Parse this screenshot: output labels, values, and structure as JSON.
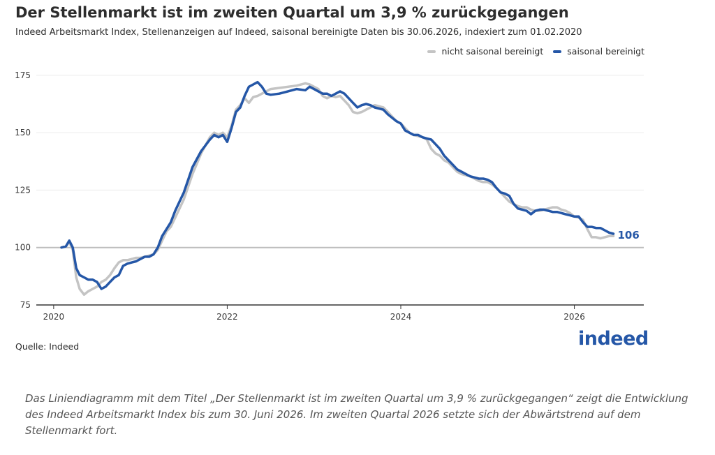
{
  "title": "Der Stellenmarkt ist im zweiten Quartal um 3,9 % zurückgegangen",
  "subtitle": "Indeed Arbeitsmarkt Index, Stellenanzeigen auf Indeed, saisonal bereinigte Daten bis 30.06.2026, indexiert zum 01.02.2020",
  "source": "Quelle: Indeed",
  "logo_text": "indeed",
  "caption": "Das Liniendiagramm mit dem Titel „Der Stellenmarkt ist im zweiten Quartal um 3,9 % zurückgegangen“ zeigt die Entwicklung des Indeed Arbeitsmarkt Index bis zum 30. Juni 2026. Im zweiten Quartal 2026 setzte sich der Abwärtstrend auf dem Stellenmarkt fort.",
  "colors": {
    "sa": "#2557a7",
    "nsa": "#c4c4c4",
    "baseline": "#bdbdbd",
    "grid": "#ececec"
  },
  "chart_data": {
    "type": "line",
    "x_unit": "year",
    "xlim": [
      2019.8,
      2026.8
    ],
    "ylim": [
      75,
      178
    ],
    "y_ticks": [
      75,
      100,
      125,
      150,
      175
    ],
    "x_ticks": [
      2020,
      2022,
      2024,
      2026
    ],
    "x_tick_labels": [
      "2020",
      "2022",
      "2024",
      "2026"
    ],
    "baseline": 100,
    "grid": true,
    "legend_position": "top-right",
    "end_label": "106",
    "series": [
      {
        "name": "nicht saisonal bereinigt",
        "color": "#c4c4c4",
        "x": [
          2020.09,
          2020.14,
          2020.18,
          2020.22,
          2020.26,
          2020.3,
          2020.35,
          2020.4,
          2020.45,
          2020.5,
          2020.55,
          2020.6,
          2020.65,
          2020.7,
          2020.75,
          2020.8,
          2020.85,
          2020.9,
          2020.95,
          2021.0,
          2021.05,
          2021.1,
          2021.15,
          2021.2,
          2021.25,
          2021.3,
          2021.35,
          2021.4,
          2021.5,
          2021.6,
          2021.7,
          2021.8,
          2021.85,
          2021.9,
          2021.95,
          2022.0,
          2022.05,
          2022.1,
          2022.15,
          2022.2,
          2022.25,
          2022.3,
          2022.35,
          2022.4,
          2022.45,
          2022.5,
          2022.6,
          2022.7,
          2022.8,
          2022.9,
          2022.95,
          2023.0,
          2023.05,
          2023.1,
          2023.15,
          2023.2,
          2023.25,
          2023.3,
          2023.35,
          2023.4,
          2023.45,
          2023.5,
          2023.55,
          2023.6,
          2023.65,
          2023.7,
          2023.75,
          2023.8,
          2023.85,
          2023.9,
          2023.95,
          2024.0,
          2024.05,
          2024.1,
          2024.15,
          2024.2,
          2024.25,
          2024.3,
          2024.35,
          2024.4,
          2024.45,
          2024.5,
          2024.55,
          2024.6,
          2024.65,
          2024.7,
          2024.75,
          2024.8,
          2024.85,
          2024.9,
          2024.95,
          2025.0,
          2025.05,
          2025.1,
          2025.15,
          2025.2,
          2025.25,
          2025.3,
          2025.35,
          2025.4,
          2025.45,
          2025.5,
          2025.55,
          2025.6,
          2025.65,
          2025.7,
          2025.75,
          2025.8,
          2025.85,
          2025.9,
          2025.95,
          2026.0,
          2026.05,
          2026.1,
          2026.15,
          2026.2,
          2026.25,
          2026.3,
          2026.35,
          2026.4,
          2026.45
        ],
        "y": [
          100,
          100.5,
          102.5,
          99,
          87,
          82,
          79.5,
          81,
          82,
          83,
          85,
          86,
          88,
          91,
          93.5,
          94.5,
          94.5,
          95,
          95.5,
          95.5,
          96,
          96.5,
          97,
          99,
          103,
          107,
          109,
          113,
          121,
          132,
          141,
          148,
          150,
          149,
          150,
          148,
          153,
          160,
          162,
          165,
          163,
          165.5,
          166,
          167,
          168,
          169,
          169.5,
          170,
          170.5,
          171.5,
          171,
          170,
          169,
          166,
          165,
          166,
          165.5,
          166,
          164,
          162,
          159,
          158.5,
          159,
          160,
          161,
          162,
          161.5,
          161,
          159,
          157,
          155,
          154,
          152,
          150,
          149,
          148.5,
          148,
          147,
          143,
          141,
          140,
          138,
          137,
          135,
          133,
          132,
          131.5,
          131,
          130,
          129,
          128.5,
          128.5,
          127.5,
          126,
          124,
          122,
          120,
          119,
          118,
          117.5,
          117.5,
          116.5,
          116,
          116,
          116.5,
          117,
          117.5,
          117.5,
          116.5,
          116,
          115,
          113.5,
          113,
          112,
          108,
          104.5,
          104.5,
          104,
          104.5,
          105,
          105
        ]
      },
      {
        "name": "saisonal bereinigt",
        "color": "#2557a7",
        "x": [
          2020.09,
          2020.14,
          2020.18,
          2020.22,
          2020.26,
          2020.3,
          2020.35,
          2020.4,
          2020.45,
          2020.5,
          2020.55,
          2020.6,
          2020.65,
          2020.7,
          2020.75,
          2020.8,
          2020.85,
          2020.9,
          2020.95,
          2021.0,
          2021.05,
          2021.1,
          2021.15,
          2021.2,
          2021.25,
          2021.3,
          2021.35,
          2021.4,
          2021.5,
          2021.6,
          2021.7,
          2021.8,
          2021.85,
          2021.9,
          2021.95,
          2022.0,
          2022.05,
          2022.1,
          2022.15,
          2022.2,
          2022.25,
          2022.3,
          2022.35,
          2022.4,
          2022.45,
          2022.5,
          2022.6,
          2022.7,
          2022.8,
          2022.9,
          2022.95,
          2023.0,
          2023.05,
          2023.1,
          2023.15,
          2023.2,
          2023.25,
          2023.3,
          2023.35,
          2023.4,
          2023.45,
          2023.5,
          2023.55,
          2023.6,
          2023.65,
          2023.7,
          2023.75,
          2023.8,
          2023.85,
          2023.9,
          2023.95,
          2024.0,
          2024.05,
          2024.1,
          2024.15,
          2024.2,
          2024.25,
          2024.3,
          2024.35,
          2024.4,
          2024.45,
          2024.5,
          2024.55,
          2024.6,
          2024.65,
          2024.7,
          2024.75,
          2024.8,
          2024.85,
          2024.9,
          2024.95,
          2025.0,
          2025.05,
          2025.1,
          2025.15,
          2025.2,
          2025.25,
          2025.3,
          2025.35,
          2025.4,
          2025.45,
          2025.5,
          2025.55,
          2025.6,
          2025.65,
          2025.7,
          2025.75,
          2025.8,
          2025.85,
          2025.9,
          2025.95,
          2026.0,
          2026.05,
          2026.1,
          2026.15,
          2026.2,
          2026.25,
          2026.3,
          2026.35,
          2026.4,
          2026.45
        ],
        "y": [
          100,
          100.5,
          103,
          100,
          91,
          88,
          87,
          86,
          86,
          85,
          82,
          83,
          85,
          87,
          88,
          92,
          93,
          93.5,
          94,
          95,
          96,
          96,
          97,
          100,
          105,
          108,
          111,
          116,
          124,
          135,
          142,
          147,
          149,
          148,
          149,
          146,
          152,
          159,
          161,
          166,
          170,
          171,
          172,
          170,
          167,
          166.5,
          167,
          168,
          169,
          168.5,
          170,
          169,
          168,
          167,
          167,
          166,
          167,
          168,
          167,
          165,
          163,
          161,
          162,
          162.5,
          162,
          161,
          160.5,
          160,
          158,
          156.5,
          155,
          154,
          151,
          150,
          149,
          149,
          148,
          147.5,
          147,
          145,
          143,
          140,
          138,
          136,
          134,
          133,
          132,
          131,
          130.5,
          130,
          130,
          129.5,
          128.5,
          126,
          124,
          123.5,
          122.5,
          119,
          117,
          116.5,
          116,
          114.5,
          116,
          116.5,
          116.5,
          116,
          115.5,
          115.5,
          115,
          114.5,
          114,
          113.5,
          113.5,
          111,
          109,
          109,
          108.5,
          108.5,
          107.5,
          106.5,
          106
        ]
      }
    ]
  }
}
